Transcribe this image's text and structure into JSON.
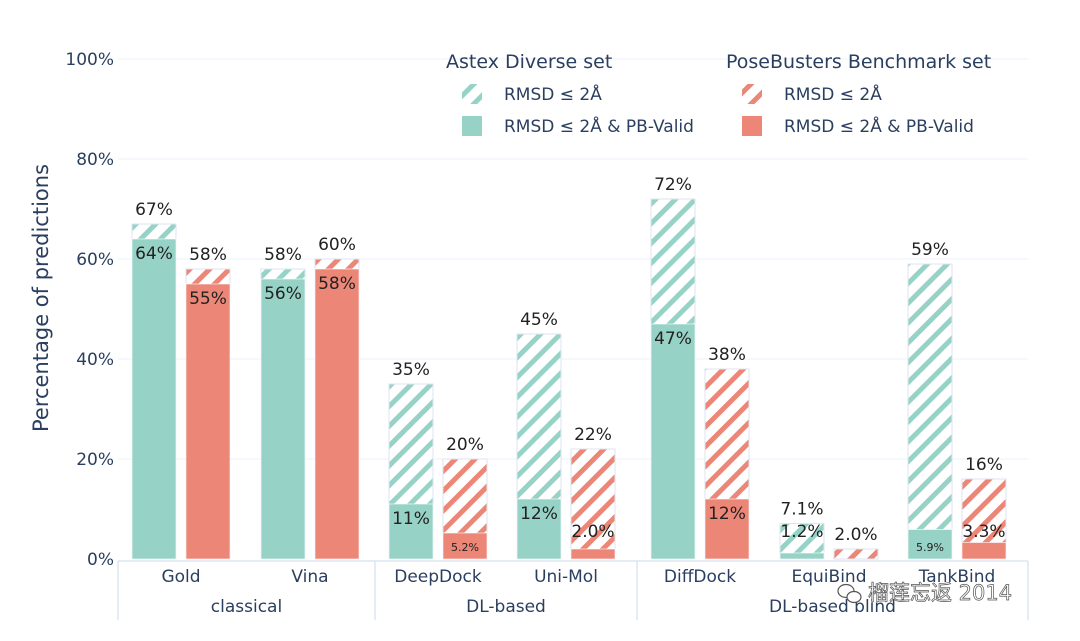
{
  "chart_data": {
    "type": "bar",
    "ylabel": "Percentage of predictions",
    "ylim": [
      0,
      100
    ],
    "yticks": [
      "0%",
      "20%",
      "40%",
      "60%",
      "80%",
      "100%"
    ],
    "grid": true,
    "legend_position": "top-right",
    "groups": [
      {
        "name": "classical",
        "categories": [
          "Gold",
          "Vina"
        ]
      },
      {
        "name": "DL-based",
        "categories": [
          "DeepDock",
          "Uni-Mol"
        ]
      },
      {
        "name": "DL-based blind",
        "categories": [
          "DiffDock",
          "EquiBind",
          "TankBind"
        ]
      }
    ],
    "categories": [
      "Gold",
      "Vina",
      "DeepDock",
      "Uni-Mol",
      "DiffDock",
      "EquiBind",
      "TankBind"
    ],
    "legend": [
      {
        "title": "Astex Diverse set",
        "items": [
          "RMSD ≤ 2Å",
          "RMSD ≤ 2Å & PB-Valid"
        ]
      },
      {
        "title": "PoseBusters Benchmark set",
        "items": [
          "RMSD ≤ 2Å",
          "RMSD ≤ 2Å & PB-Valid"
        ]
      }
    ],
    "series": [
      {
        "name": "Astex Diverse set",
        "color": "#97d2c6",
        "rmsd": [
          67,
          58,
          35,
          45,
          72,
          7.1,
          59
        ],
        "rmsd_labels": [
          "67%",
          "58%",
          "35%",
          "45%",
          "72%",
          "7.1%",
          "59%"
        ],
        "valid": [
          64,
          56,
          11,
          12,
          47,
          1.2,
          5.9
        ],
        "valid_labels": [
          "64%",
          "56%",
          "11%",
          "12%",
          "47%",
          "1.2%",
          "5.9%"
        ]
      },
      {
        "name": "PoseBusters Benchmark set",
        "color": "#ec8677",
        "rmsd": [
          58,
          60,
          20,
          22,
          38,
          2.0,
          16
        ],
        "rmsd_labels": [
          "58%",
          "60%",
          "20%",
          "22%",
          "38%",
          "2.0%",
          "16%"
        ],
        "valid": [
          55,
          58,
          5.2,
          2.0,
          12,
          0,
          3.3
        ],
        "valid_labels": [
          "55%",
          "58%",
          "5.2%",
          "2.0%",
          "12%",
          "",
          "3.3%"
        ]
      }
    ]
  },
  "watermark": "榴莲忘返 2014",
  "watermark_icon": "wechat-icon"
}
